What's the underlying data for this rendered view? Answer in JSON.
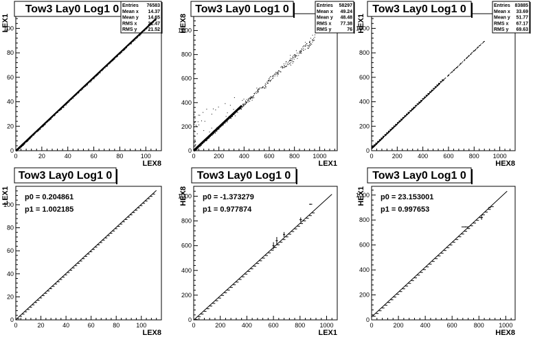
{
  "chart_data": [
    {
      "type": "scatter",
      "title": "Tow3 Lay0 Log1 0",
      "xlabel": "LEX8",
      "ylabel": "LEX1",
      "xlim": [
        0,
        112
      ],
      "ylim": [
        0,
        112
      ],
      "xticks": [
        0,
        20,
        40,
        60,
        80,
        100
      ],
      "yticks": [
        0,
        20,
        40,
        60,
        80,
        100
      ],
      "stats": [
        {
          "label": "Entries",
          "value": "76583"
        },
        {
          "label": "Mean x",
          "value": "14.37"
        },
        {
          "label": "Mean y",
          "value": "14.65"
        },
        {
          "label": "RMS x",
          "value": "21.47"
        },
        {
          "label": "RMS y",
          "value": "21.52"
        }
      ],
      "slope": 1.0,
      "intercept": 0.0,
      "range": [
        0,
        108
      ]
    },
    {
      "type": "scatter",
      "title": "Tow3 Lay0 Log1 0",
      "xlabel": "LEX1",
      "ylabel": "HEX8",
      "xlim": [
        0,
        1140
      ],
      "ylim": [
        0,
        1140
      ],
      "xticks": [
        0,
        200,
        400,
        600,
        800,
        1000
      ],
      "yticks": [
        0,
        200,
        400,
        600,
        800,
        1000
      ],
      "stats": [
        {
          "label": "Entries",
          "value": "58297"
        },
        {
          "label": "Mean x",
          "value": "49.24"
        },
        {
          "label": "Mean y",
          "value": "48.48"
        },
        {
          "label": "RMS x",
          "value": "77.38"
        },
        {
          "label": "RMS y",
          "value": "76"
        }
      ],
      "slope": 0.98,
      "intercept": 0.0,
      "range": [
        0,
        960
      ]
    },
    {
      "type": "scatter",
      "title": "Tow3 Lay0 Log1 0",
      "xlabel": "HEX8",
      "ylabel": "HEX1",
      "xlim": [
        0,
        1120
      ],
      "ylim": [
        0,
        1120
      ],
      "xticks": [
        0,
        200,
        400,
        600,
        800,
        1000
      ],
      "yticks": [
        0,
        200,
        400,
        600,
        800,
        1000
      ],
      "stats": [
        {
          "label": "Entries",
          "value": "83885"
        },
        {
          "label": "Mean x",
          "value": "33.69"
        },
        {
          "label": "Mean y",
          "value": "51.77"
        },
        {
          "label": "RMS x",
          "value": "67.17"
        },
        {
          "label": "RMS y",
          "value": "69.63"
        }
      ],
      "slope": 0.998,
      "intercept": 23.0,
      "range": [
        0,
        880
      ]
    },
    {
      "type": "line",
      "title": "Tow3 Lay0 Log1 0",
      "xlabel": "LEX8",
      "ylabel": "LEX1",
      "xlim": [
        0,
        116
      ],
      "ylim": [
        0,
        116
      ],
      "xticks": [
        0,
        20,
        40,
        60,
        80,
        100
      ],
      "yticks": [
        0,
        20,
        40,
        60,
        80,
        100
      ],
      "fit": {
        "p0_label": "p0 = 0.204861",
        "p1_label": "p1 = 1.002185",
        "p0": 0.204861,
        "p1": 1.002185,
        "range": [
          0,
          112
        ]
      },
      "points": {
        "start": 2,
        "end": 111,
        "step": 2
      }
    },
    {
      "type": "line",
      "title": "Tow3 Lay0 Log1 0",
      "xlabel": "LEX1",
      "ylabel": "HEX8",
      "xlim": [
        0,
        1080
      ],
      "ylim": [
        0,
        1080
      ],
      "xticks": [
        0,
        200,
        400,
        600,
        800,
        1000
      ],
      "yticks": [
        0,
        200,
        400,
        600,
        800,
        1000
      ],
      "fit": {
        "p0_label": "p0 = -1.373279",
        "p1_label": "p1 = 0.977874",
        "p0": -1.373279,
        "p1": 0.977874,
        "range": [
          0,
          1040
        ]
      },
      "points": {
        "start": 20,
        "end": 900,
        "step": 22
      },
      "outliers": [
        {
          "x": 600,
          "y": 600,
          "ex": 8,
          "ey": 28
        },
        {
          "x": 625,
          "y": 640,
          "ex": 8,
          "ey": 30
        },
        {
          "x": 680,
          "y": 690,
          "ex": 8,
          "ey": 20
        },
        {
          "x": 805,
          "y": 810,
          "ex": 10,
          "ey": 18
        },
        {
          "x": 880,
          "y": 935,
          "ex": 12,
          "ey": 4
        }
      ]
    },
    {
      "type": "line",
      "title": "Tow3 Lay0 Log1 0",
      "xlabel": "HEX8",
      "ylabel": "HEX1",
      "xlim": [
        0,
        1070
      ],
      "ylim": [
        0,
        1070
      ],
      "xticks": [
        0,
        200,
        400,
        600,
        800,
        1000
      ],
      "yticks": [
        0,
        200,
        400,
        600,
        800,
        1000
      ],
      "fit": {
        "p0_label": "p0 = 23.153001",
        "p1_label": "p1 = 0.997653",
        "p0": 23.153001,
        "p1": 0.997653,
        "range": [
          0,
          1010
        ]
      },
      "points": {
        "start": 20,
        "end": 900,
        "step": 22
      },
      "outliers": [
        {
          "x": 700,
          "y": 745,
          "ex": 30,
          "ey": 3
        },
        {
          "x": 820,
          "y": 820,
          "ex": 10,
          "ey": 18
        },
        {
          "x": 880,
          "y": 900,
          "ex": 10,
          "ey": 4
        }
      ]
    }
  ]
}
